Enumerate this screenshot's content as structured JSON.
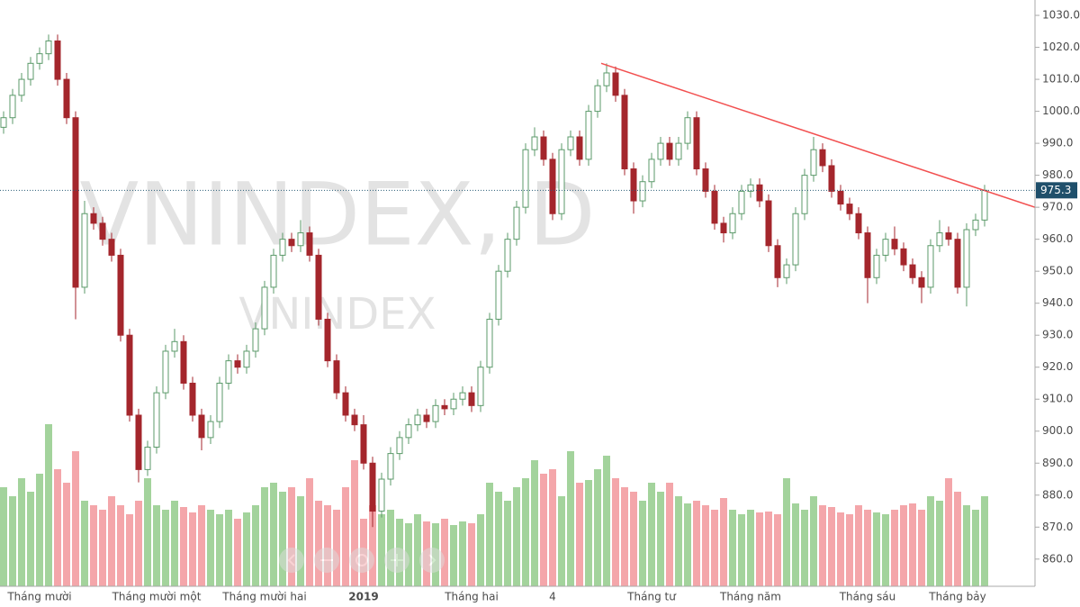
{
  "chart_data": {
    "type": "candlestick",
    "watermark": "VNINDEX, D",
    "watermark_subtitle": "VNINDEX",
    "categories": [
      null,
      null,
      null,
      null,
      "Tháng mười",
      null,
      null,
      null,
      null,
      null,
      null,
      null,
      null,
      null,
      null,
      null,
      null,
      "Tháng mười một",
      null,
      null,
      null,
      null,
      null,
      null,
      null,
      null,
      null,
      null,
      null,
      "Tháng mười hai",
      null,
      null,
      null,
      null,
      null,
      null,
      null,
      null,
      null,
      null,
      "2019",
      null,
      null,
      null,
      null,
      null,
      null,
      null,
      null,
      null,
      null,
      null,
      "Tháng hai",
      null,
      null,
      null,
      null,
      null,
      null,
      null,
      null,
      "4",
      null,
      null,
      null,
      null,
      null,
      null,
      null,
      null,
      null,
      null,
      "Tháng tư",
      null,
      null,
      null,
      null,
      null,
      null,
      null,
      null,
      null,
      null,
      "Tháng năm",
      null,
      null,
      null,
      null,
      null,
      null,
      null,
      null,
      null,
      null,
      null,
      null,
      "Tháng sáu",
      null,
      null,
      null,
      null,
      null,
      null,
      null,
      null,
      null,
      "Tháng bảy",
      null,
      null,
      null
    ],
    "open": [
      995,
      998,
      1005,
      1010,
      1015,
      1018,
      1022,
      1010,
      998,
      945,
      968,
      965,
      960,
      955,
      930,
      905,
      888,
      895,
      912,
      925,
      928,
      915,
      905,
      898,
      903,
      915,
      922,
      920,
      925,
      932,
      945,
      955,
      960,
      958,
      962,
      955,
      935,
      922,
      912,
      905,
      902,
      890,
      875,
      885,
      893,
      898,
      902,
      905,
      903,
      908,
      907,
      910,
      912,
      908,
      920,
      935,
      950,
      960,
      970,
      988,
      992,
      985,
      968,
      988,
      992,
      985,
      1000,
      1008,
      1012,
      1005,
      982,
      972,
      978,
      985,
      990,
      985,
      990,
      998,
      982,
      975,
      965,
      962,
      968,
      975,
      977,
      972,
      958,
      948,
      952,
      968,
      980,
      988,
      983,
      975,
      971,
      968,
      962,
      948,
      955,
      960,
      957,
      952,
      948,
      945,
      958,
      962,
      960,
      945,
      963,
      966
    ],
    "high": [
      1000,
      1007,
      1012,
      1017,
      1020,
      1024,
      1024,
      1012,
      1000,
      972,
      970,
      967,
      962,
      957,
      932,
      907,
      897,
      914,
      927,
      932,
      930,
      917,
      907,
      905,
      917,
      924,
      924,
      927,
      934,
      947,
      957,
      962,
      962,
      966,
      964,
      957,
      937,
      924,
      914,
      907,
      905,
      892,
      887,
      895,
      900,
      904,
      907,
      907,
      910,
      910,
      912,
      914,
      914,
      922,
      937,
      952,
      962,
      972,
      990,
      995,
      994,
      987,
      990,
      994,
      994,
      1002,
      1010,
      1015,
      1014,
      1007,
      984,
      980,
      987,
      992,
      992,
      992,
      1000,
      1000,
      984,
      977,
      967,
      970,
      977,
      979,
      979,
      974,
      960,
      954,
      970,
      982,
      992,
      990,
      985,
      977,
      973,
      970,
      964,
      957,
      962,
      964,
      959,
      954,
      950,
      960,
      966,
      964,
      962,
      965,
      968,
      977
    ],
    "low": [
      993,
      996,
      1003,
      1008,
      1013,
      1016,
      1008,
      996,
      935,
      943,
      963,
      958,
      953,
      928,
      903,
      884,
      886,
      893,
      910,
      923,
      913,
      903,
      894,
      896,
      901,
      913,
      918,
      918,
      923,
      930,
      943,
      953,
      956,
      956,
      953,
      933,
      920,
      910,
      903,
      900,
      888,
      870,
      873,
      883,
      891,
      896,
      900,
      901,
      901,
      905,
      905,
      908,
      906,
      906,
      918,
      933,
      948,
      958,
      968,
      986,
      983,
      966,
      966,
      986,
      983,
      983,
      998,
      1006,
      1003,
      980,
      968,
      970,
      976,
      983,
      983,
      983,
      988,
      980,
      973,
      963,
      959,
      960,
      966,
      973,
      970,
      956,
      945,
      946,
      950,
      966,
      978,
      981,
      973,
      969,
      966,
      960,
      940,
      946,
      953,
      955,
      950,
      946,
      940,
      943,
      956,
      958,
      943,
      939,
      961,
      964
    ],
    "close": [
      998,
      1005,
      1010,
      1015,
      1018,
      1022,
      1010,
      998,
      945,
      968,
      965,
      960,
      955,
      930,
      905,
      888,
      895,
      912,
      925,
      928,
      915,
      905,
      898,
      903,
      915,
      922,
      920,
      925,
      932,
      945,
      955,
      960,
      958,
      962,
      955,
      935,
      922,
      912,
      905,
      902,
      890,
      875,
      885,
      893,
      898,
      902,
      905,
      903,
      908,
      907,
      910,
      912,
      908,
      920,
      935,
      950,
      960,
      970,
      988,
      992,
      985,
      968,
      988,
      992,
      985,
      1000,
      1008,
      1012,
      1005,
      982,
      972,
      978,
      985,
      990,
      985,
      990,
      998,
      982,
      975,
      965,
      962,
      968,
      975,
      977,
      972,
      958,
      948,
      952,
      968,
      980,
      988,
      983,
      975,
      971,
      968,
      962,
      948,
      955,
      960,
      957,
      952,
      948,
      945,
      958,
      962,
      960,
      945,
      963,
      966,
      975.3
    ],
    "volume": [
      110,
      100,
      120,
      105,
      125,
      180,
      130,
      115,
      150,
      95,
      90,
      85,
      100,
      90,
      80,
      95,
      120,
      90,
      85,
      95,
      88,
      82,
      90,
      85,
      80,
      85,
      75,
      82,
      90,
      110,
      115,
      105,
      110,
      100,
      120,
      95,
      90,
      85,
      110,
      140,
      75,
      90,
      80,
      85,
      75,
      70,
      80,
      72,
      70,
      75,
      68,
      72,
      70,
      80,
      115,
      105,
      95,
      110,
      120,
      140,
      125,
      130,
      100,
      150,
      115,
      118,
      130,
      145,
      120,
      110,
      105,
      95,
      115,
      105,
      115,
      100,
      92,
      95,
      90,
      85,
      98,
      85,
      80,
      85,
      82,
      83,
      80,
      120,
      92,
      85,
      100,
      90,
      88,
      82,
      80,
      90,
      85,
      82,
      80,
      85,
      90,
      92,
      85,
      100,
      95,
      120,
      105,
      90,
      85,
      100
    ],
    "up_color": "#5b9a6a",
    "down_color": "#a4262c",
    "volume_up_color": "#a3d39c",
    "volume_down_color": "#f4a6aa",
    "ylim": [
      851.5,
      1034.8
    ],
    "yticks": [
      {
        "value": 860,
        "label": "860.0"
      },
      {
        "value": 870,
        "label": "870.0"
      },
      {
        "value": 880,
        "label": "880.0"
      },
      {
        "value": 890,
        "label": "890.0"
      },
      {
        "value": 900,
        "label": "900.0"
      },
      {
        "value": 910,
        "label": "910.0"
      },
      {
        "value": 920,
        "label": "920.0"
      },
      {
        "value": 930,
        "label": "930.0"
      },
      {
        "value": 940,
        "label": "940.0"
      },
      {
        "value": 950,
        "label": "950.0"
      },
      {
        "value": 960,
        "label": "960.0"
      },
      {
        "value": 970,
        "label": "970.0"
      },
      {
        "value": 980,
        "label": "980.0"
      },
      {
        "value": 990,
        "label": "990.0"
      },
      {
        "value": 1000,
        "label": "1000.0"
      },
      {
        "value": 1010,
        "label": "1010.0"
      },
      {
        "value": 1020,
        "label": "1020.0"
      },
      {
        "value": 1030,
        "label": "1030.0"
      }
    ],
    "trendline": {
      "x": [
        66.4,
        114.6
      ],
      "y": [
        1015,
        970
      ],
      "color": "#f25050"
    }
  }
}
